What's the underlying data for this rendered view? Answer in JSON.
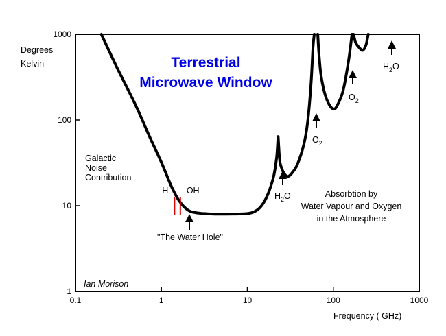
{
  "chart_data": {
    "type": "line",
    "title": "Terrestrial",
    "subtitle": "Microwave Window",
    "ylabel_line1": "Degrees",
    "ylabel_line2": "Kelvin",
    "xlabel": "Frequency ( GHz)",
    "xscale": "log",
    "yscale": "log",
    "xlim": [
      0.1,
      1000
    ],
    "ylim": [
      1,
      1000
    ],
    "xticks": [
      {
        "value": 0.1,
        "label": "0.1"
      },
      {
        "value": 1,
        "label": "1"
      },
      {
        "value": 10,
        "label": "10"
      },
      {
        "value": 100,
        "label": "100"
      },
      {
        "value": 1000,
        "label": "1000"
      }
    ],
    "yticks": [
      {
        "value": 1,
        "label": "1"
      },
      {
        "value": 10,
        "label": "10"
      },
      {
        "value": 100,
        "label": "100"
      },
      {
        "value": 1000,
        "label": "1000"
      }
    ],
    "grid": false,
    "segments": [
      [
        [
          0.2,
          1000
        ],
        [
          0.3,
          420
        ],
        [
          0.5,
          150
        ],
        [
          0.7,
          70
        ],
        [
          1.0,
          32
        ],
        [
          1.3,
          17
        ],
        [
          1.6,
          11.5
        ],
        [
          2.0,
          9.0
        ],
        [
          2.5,
          8.3
        ],
        [
          4.0,
          8.0
        ],
        [
          7.0,
          8.0
        ],
        [
          10.0,
          8.1
        ],
        [
          12.0,
          8.5
        ],
        [
          14.0,
          9.5
        ],
        [
          16.0,
          11.5
        ],
        [
          18.0,
          15
        ],
        [
          20.0,
          21
        ],
        [
          21.0,
          27
        ],
        [
          22.0,
          38
        ],
        [
          22.5,
          52
        ],
        [
          22.8,
          64
        ],
        [
          23.2,
          48
        ],
        [
          24.0,
          32
        ],
        [
          26.0,
          25
        ],
        [
          28.0,
          22.5
        ],
        [
          30.0,
          22
        ],
        [
          33.0,
          24
        ],
        [
          38.0,
          30
        ],
        [
          45.0,
          50
        ],
        [
          50.0,
          90
        ],
        [
          55.0,
          260
        ],
        [
          58.0,
          700
        ],
        [
          60.0,
          1000
        ]
      ],
      [
        [
          66.0,
          1000
        ],
        [
          68.0,
          600
        ],
        [
          72.0,
          330
        ],
        [
          80.0,
          200
        ],
        [
          90.0,
          150
        ],
        [
          100.0,
          135
        ],
        [
          110.0,
          145
        ],
        [
          130.0,
          220
        ],
        [
          150.0,
          480
        ],
        [
          165.0,
          1000
        ]
      ],
      [
        [
          172.0,
          1000
        ],
        [
          182.0,
          800
        ],
        [
          200.0,
          700
        ],
        [
          220.0,
          650
        ],
        [
          240.0,
          750
        ],
        [
          255.0,
          1000
        ]
      ]
    ],
    "lines": [
      {
        "label": "H",
        "x": 1.42,
        "y": [
          7.8,
          12.5
        ],
        "color": "#e00000"
      },
      {
        "label": "OH",
        "x": 1.66,
        "y": [
          7.8,
          12.5
        ],
        "color": "#e00000"
      }
    ],
    "annotations": {
      "galactic": [
        "Galactic",
        "Noise",
        "Contribution"
      ],
      "water_hole": "\"The Water Hole\"",
      "absorption": [
        "Absorbtion by",
        "Water Vapour and Oxygen",
        "in the Atmosphere"
      ],
      "author": "Ian Morison",
      "h2o_1": {
        "main": "H",
        "sub": "2",
        "tail": "O"
      },
      "o2_1": {
        "main": "O",
        "sub": "2"
      },
      "o2_2": {
        "main": "O",
        "sub": "2"
      },
      "h2o_2": {
        "main": "H",
        "sub": "2",
        "tail": "O"
      }
    }
  }
}
